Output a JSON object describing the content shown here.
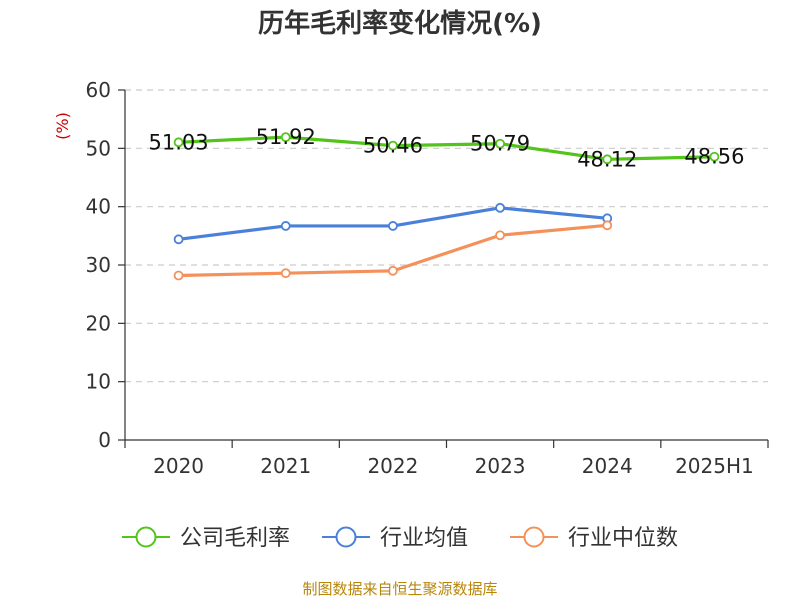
{
  "chart_data": {
    "type": "line",
    "title": "历年毛利率变化情况(%)",
    "unit_label": "(%)",
    "unit_color": "#cc0000",
    "categories": [
      "2020",
      "2021",
      "2022",
      "2023",
      "2024",
      "2025H1"
    ],
    "ylim": [
      0,
      60
    ],
    "yticks": [
      "0",
      "10",
      "20",
      "30",
      "40",
      "50",
      "60"
    ],
    "grid": true,
    "legend_position": "bottom",
    "series": [
      {
        "name": "公司毛利率",
        "color": "#52c41a",
        "values": [
          51.03,
          51.92,
          50.46,
          50.79,
          48.12,
          48.56
        ],
        "labels": [
          "51.03",
          "51.92",
          "50.46",
          "50.79",
          "48.12",
          "48.56"
        ]
      },
      {
        "name": "行业均值",
        "color": "#4a80d9",
        "values": [
          34.4,
          36.7,
          36.7,
          39.8,
          38.0,
          null
        ],
        "labels": []
      },
      {
        "name": "行业中位数",
        "color": "#f4915a",
        "values": [
          28.2,
          28.6,
          29.0,
          35.1,
          36.8,
          null
        ],
        "labels": []
      }
    ]
  },
  "source": {
    "text": "制图数据来自恒生聚源数据库",
    "color": "#b8860b"
  }
}
